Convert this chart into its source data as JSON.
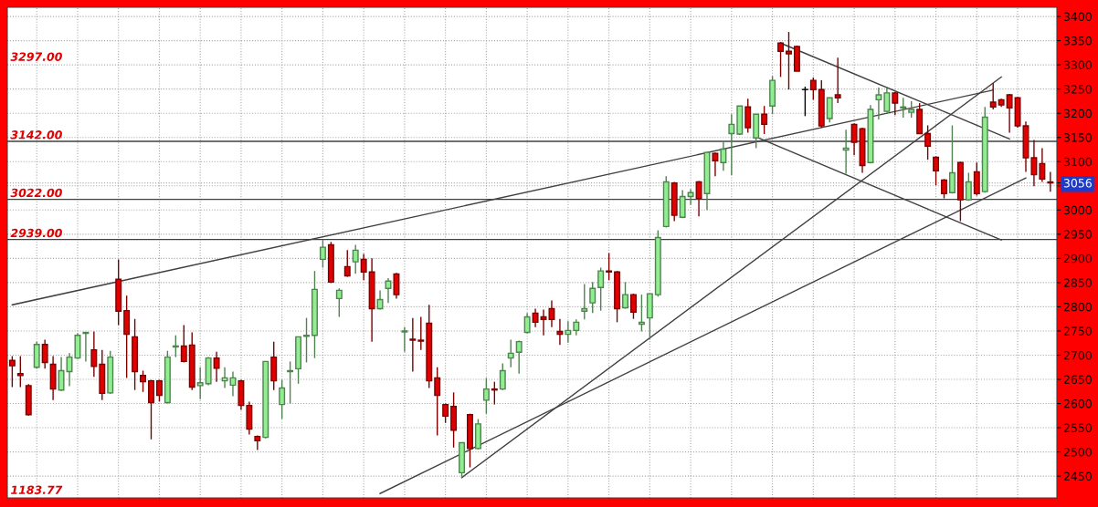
{
  "chart_data": {
    "type": "candlestick",
    "categories": [
      null,
      null,
      null,
      null,
      null,
      null,
      null,
      null,
      null,
      null,
      null,
      null,
      null,
      null,
      null,
      null,
      null,
      null,
      null,
      null,
      null,
      null,
      null,
      null,
      null,
      null,
      null,
      null,
      null,
      null,
      null,
      null,
      null,
      null,
      null,
      null,
      null,
      null,
      null,
      null,
      null,
      null,
      null,
      null,
      null,
      null,
      null,
      null,
      null,
      null,
      null,
      null,
      null,
      null,
      null,
      null,
      null,
      null,
      null,
      null,
      null,
      null,
      null,
      null,
      null,
      null,
      null,
      null,
      null,
      null,
      null,
      null,
      null,
      null,
      null,
      null,
      null,
      null,
      null,
      null,
      null,
      null,
      null,
      null,
      null,
      null,
      null,
      null,
      null,
      null,
      null,
      null,
      null,
      null,
      null,
      null,
      null,
      null,
      null,
      null,
      null,
      null,
      null,
      null,
      null,
      null,
      null,
      null,
      null,
      null,
      null,
      null,
      null,
      null,
      null,
      null,
      null,
      null,
      null,
      null,
      null,
      null,
      null,
      null,
      null,
      null,
      null,
      null
    ],
    "ohlc": [
      [
        2689,
        2698,
        2634,
        2678
      ],
      [
        2662,
        2698,
        2634,
        2658
      ],
      [
        2637,
        2640,
        2575,
        2577
      ],
      [
        2675,
        2728,
        2672,
        2722
      ],
      [
        2722,
        2732,
        2672,
        2685
      ],
      [
        2681,
        2698,
        2607,
        2630
      ],
      [
        2628,
        2696,
        2626,
        2668
      ],
      [
        2666,
        2704,
        2636,
        2696
      ],
      [
        2694,
        2745,
        2692,
        2741
      ],
      [
        2745,
        2747,
        2687,
        2747
      ],
      [
        2711,
        2749,
        2655,
        2677
      ],
      [
        2681,
        2711,
        2607,
        2621
      ],
      [
        2622,
        2709,
        2620,
        2696
      ],
      [
        2857,
        2898,
        2762,
        2791
      ],
      [
        2792,
        2823,
        2653,
        2743
      ],
      [
        2738,
        2775,
        2628,
        2666
      ],
      [
        2658,
        2668,
        2624,
        2645
      ],
      [
        2647,
        2649,
        2526,
        2602
      ],
      [
        2647,
        2649,
        2604,
        2617
      ],
      [
        2602,
        2709,
        2600,
        2696
      ],
      [
        2717,
        2741,
        2696,
        2719
      ],
      [
        2719,
        2762,
        2685,
        2687
      ],
      [
        2721,
        2747,
        2628,
        2634
      ],
      [
        2637,
        2675,
        2609,
        2643
      ],
      [
        2641,
        2696,
        2638,
        2694
      ],
      [
        2694,
        2707,
        2645,
        2673
      ],
      [
        2647,
        2675,
        2632,
        2653
      ],
      [
        2638,
        2666,
        2615,
        2653
      ],
      [
        2647,
        2649,
        2587,
        2596
      ],
      [
        2596,
        2604,
        2536,
        2547
      ],
      [
        2532,
        2534,
        2504,
        2523
      ],
      [
        2530,
        2687,
        2528,
        2687
      ],
      [
        2696,
        2728,
        2628,
        2647
      ],
      [
        2598,
        2649,
        2568,
        2632
      ],
      [
        2666,
        2687,
        2600,
        2668
      ],
      [
        2672,
        2738,
        2641,
        2738
      ],
      [
        2739,
        2777,
        2685,
        2741
      ],
      [
        2741,
        2874,
        2694,
        2836
      ],
      [
        2898,
        2938,
        2881,
        2923
      ],
      [
        2928,
        2934,
        2849,
        2851
      ],
      [
        2817,
        2838,
        2779,
        2834
      ],
      [
        2883,
        2917,
        2862,
        2864
      ],
      [
        2893,
        2928,
        2868,
        2917
      ],
      [
        2898,
        2909,
        2855,
        2872
      ],
      [
        2872,
        2900,
        2728,
        2796
      ],
      [
        2796,
        2834,
        2794,
        2815
      ],
      [
        2838,
        2859,
        2808,
        2853
      ],
      [
        2868,
        2870,
        2817,
        2825
      ],
      [
        2748,
        2758,
        2707,
        2750
      ],
      [
        2733,
        2777,
        2666,
        2731
      ],
      [
        2731,
        2779,
        2711,
        2729
      ],
      [
        2766,
        2804,
        2632,
        2647
      ],
      [
        2653,
        2675,
        2534,
        2617
      ],
      [
        2598,
        2600,
        2560,
        2574
      ],
      [
        2594,
        2623,
        2509,
        2545
      ],
      [
        2457,
        2519,
        2447,
        2519
      ],
      [
        2577,
        2579,
        2468,
        2507
      ],
      [
        2507,
        2568,
        2505,
        2558
      ],
      [
        2607,
        2653,
        2579,
        2630
      ],
      [
        2630,
        2645,
        2598,
        2628
      ],
      [
        2630,
        2683,
        2628,
        2668
      ],
      [
        2694,
        2732,
        2675,
        2704
      ],
      [
        2706,
        2730,
        2662,
        2728
      ],
      [
        2747,
        2787,
        2745,
        2779
      ],
      [
        2787,
        2796,
        2758,
        2768
      ],
      [
        2779,
        2794,
        2741,
        2774
      ],
      [
        2796,
        2813,
        2758,
        2774
      ],
      [
        2749,
        2775,
        2721,
        2743
      ],
      [
        2743,
        2770,
        2726,
        2751
      ],
      [
        2751,
        2774,
        2741,
        2768
      ],
      [
        2791,
        2847,
        2774,
        2796
      ],
      [
        2808,
        2851,
        2787,
        2838
      ],
      [
        2840,
        2881,
        2792,
        2874
      ],
      [
        2874,
        2911,
        2855,
        2872
      ],
      [
        2872,
        2874,
        2768,
        2796
      ],
      [
        2798,
        2851,
        2796,
        2825
      ],
      [
        2825,
        2827,
        2775,
        2789
      ],
      [
        2764,
        2825,
        2749,
        2768
      ],
      [
        2777,
        2827,
        2732,
        2827
      ],
      [
        2825,
        2958,
        2821,
        2943
      ],
      [
        2966,
        3070,
        2964,
        3058
      ],
      [
        3056,
        3058,
        2977,
        2989
      ],
      [
        2985,
        3041,
        2983,
        3028
      ],
      [
        3028,
        3043,
        3011,
        3036
      ],
      [
        3058,
        3060,
        2987,
        3024
      ],
      [
        3034,
        3119,
        3000,
        3119
      ],
      [
        3117,
        3119,
        3070,
        3102
      ],
      [
        3098,
        3140,
        3081,
        3126
      ],
      [
        3158,
        3198,
        3072,
        3177
      ],
      [
        3157,
        3215,
        3155,
        3215
      ],
      [
        3213,
        3230,
        3160,
        3170
      ],
      [
        3149,
        3198,
        3128,
        3198
      ],
      [
        3198,
        3215,
        3157,
        3177
      ],
      [
        3215,
        3277,
        3198,
        3268
      ],
      [
        3345,
        3347,
        3275,
        3328
      ],
      [
        3328,
        3368,
        3249,
        3323
      ],
      [
        3338,
        3340,
        3287,
        3287
      ],
      [
        3249,
        3255,
        3194,
        3249
      ],
      [
        3268,
        3274,
        3228,
        3249
      ],
      [
        3249,
        3268,
        3170,
        3174
      ],
      [
        3189,
        3232,
        3181,
        3232
      ],
      [
        3238,
        3315,
        3221,
        3232
      ],
      [
        3124,
        3166,
        3075,
        3128
      ],
      [
        3177,
        3179,
        3113,
        3140
      ],
      [
        3168,
        3170,
        3077,
        3092
      ],
      [
        3098,
        3217,
        3096,
        3208
      ],
      [
        3228,
        3253,
        3187,
        3238
      ],
      [
        3204,
        3255,
        3202,
        3242
      ],
      [
        3242,
        3244,
        3196,
        3221
      ],
      [
        3211,
        3232,
        3191,
        3213
      ],
      [
        3202,
        3225,
        3191,
        3208
      ],
      [
        3208,
        3221,
        3158,
        3158
      ],
      [
        3158,
        3175,
        3104,
        3132
      ],
      [
        3109,
        3111,
        3051,
        3081
      ],
      [
        3062,
        3064,
        3024,
        3034
      ],
      [
        3036,
        3175,
        3034,
        3077
      ],
      [
        3098,
        3100,
        2977,
        3021
      ],
      [
        3021,
        3077,
        3019,
        3058
      ],
      [
        3079,
        3098,
        3030,
        3034
      ],
      [
        3038,
        3213,
        3036,
        3192
      ],
      [
        3223,
        3262,
        3208,
        3213
      ],
      [
        3228,
        3230,
        3213,
        3217
      ],
      [
        3238,
        3240,
        3160,
        3211
      ],
      [
        3232,
        3234,
        3170,
        3174
      ],
      [
        3174,
        3183,
        3079,
        3108
      ],
      [
        3108,
        3145,
        3049,
        3073
      ],
      [
        3096,
        3128,
        3058,
        3064
      ],
      [
        3058,
        3079,
        3038,
        3056
      ]
    ],
    "colors": [
      "#e00000",
      "#e00000",
      "#e00000",
      "#90ee90",
      "#e00000",
      "#e00000",
      "#90ee90",
      "#90ee90",
      "#90ee90",
      "#90ee90",
      "#e00000",
      "#e00000",
      "#90ee90",
      "#e00000",
      "#e00000",
      "#e00000",
      "#e00000",
      "#e00000",
      "#e00000",
      "#90ee90",
      "#90ee90",
      "#e00000",
      "#e00000",
      "#90ee90",
      "#90ee90",
      "#e00000",
      "#90ee90",
      "#90ee90",
      "#e00000",
      "#e00000",
      "#e00000",
      "#90ee90",
      "#e00000",
      "#90ee90",
      "#90ee90",
      "#90ee90",
      "#90ee90",
      "#90ee90",
      "#90ee90",
      "#e00000",
      "#90ee90",
      "#e00000",
      "#90ee90",
      "#e00000",
      "#e00000",
      "#90ee90",
      "#90ee90",
      "#e00000",
      "#90ee90",
      "#e00000",
      "#e00000",
      "#e00000",
      "#e00000",
      "#e00000",
      "#e00000",
      "#90ee90",
      "#e00000",
      "#90ee90",
      "#90ee90",
      "#e00000",
      "#90ee90",
      "#90ee90",
      "#90ee90",
      "#90ee90",
      "#e00000",
      "#e00000",
      "#e00000",
      "#e00000",
      "#90ee90",
      "#90ee90",
      "#90ee90",
      "#90ee90",
      "#90ee90",
      "#e00000",
      "#e00000",
      "#90ee90",
      "#e00000",
      "#90ee90",
      "#90ee90",
      "#90ee90",
      "#90ee90",
      "#e00000",
      "#90ee90",
      "#90ee90",
      "#e00000",
      "#90ee90",
      "#e00000",
      "#90ee90",
      "#90ee90",
      "#90ee90",
      "#e00000",
      "#90ee90",
      "#e00000",
      "#90ee90",
      "#e00000",
      "#e00000",
      "#e00000",
      "#000000",
      "#e00000",
      "#e00000",
      "#90ee90",
      "#e00000",
      "#90ee90",
      "#e00000",
      "#e00000",
      "#90ee90",
      "#90ee90",
      "#90ee90",
      "#e00000",
      "#90ee90",
      "#90ee90",
      "#e00000",
      "#e00000",
      "#e00000",
      "#e00000",
      "#90ee90",
      "#e00000",
      "#90ee90",
      "#e00000",
      "#90ee90",
      "#e00000",
      "#e00000",
      "#e00000",
      "#e00000",
      "#e00000",
      "#e00000",
      "#e00000",
      "#e00000"
    ],
    "series": [
      {
        "type": "line",
        "color": "#404040",
        "values": [
          2804,
          null,
          null,
          null,
          null,
          null,
          null,
          null,
          null,
          null,
          null,
          null,
          null,
          null,
          null,
          null,
          null,
          null,
          null,
          null,
          null,
          null,
          null,
          null,
          null,
          null,
          null,
          null,
          null,
          null,
          null,
          null,
          null,
          null,
          null,
          null,
          null,
          null,
          null,
          null,
          null,
          null,
          null,
          null,
          null,
          null,
          null,
          null,
          null,
          null,
          null,
          null,
          null,
          null,
          null,
          null,
          null,
          null,
          null,
          null,
          null,
          null,
          null,
          null,
          null,
          null,
          null,
          null,
          null,
          null,
          null,
          null,
          null,
          null,
          null,
          null,
          null,
          null,
          null,
          null,
          null,
          null,
          null,
          null,
          null,
          null,
          null,
          null,
          null,
          null,
          null,
          null,
          null,
          null,
          null,
          null,
          null,
          null,
          null,
          null,
          null,
          null,
          null,
          null,
          null,
          null,
          null,
          null,
          null,
          null,
          null,
          null,
          null,
          null,
          null,
          null,
          null,
          null,
          null,
          null,
          3248,
          null,
          null,
          null,
          null,
          null,
          null,
          null
        ]
      },
      {
        "type": "line",
        "color": "#404040",
        "values": [
          null,
          null,
          null,
          null,
          null,
          null,
          null,
          null,
          null,
          null,
          null,
          null,
          null,
          null,
          null,
          null,
          null,
          null,
          null,
          null,
          null,
          null,
          null,
          null,
          null,
          null,
          null,
          null,
          null,
          null,
          null,
          null,
          null,
          null,
          null,
          null,
          null,
          null,
          null,
          null,
          null,
          null,
          null,
          null,
          null,
          null,
          null,
          null,
          null,
          null,
          null,
          null,
          null,
          null,
          null,
          2447,
          null,
          null,
          null,
          null,
          null,
          null,
          null,
          null,
          null,
          null,
          null,
          null,
          null,
          null,
          null,
          null,
          null,
          null,
          null,
          null,
          null,
          null,
          null,
          null,
          null,
          null,
          null,
          null,
          null,
          null,
          null,
          null,
          null,
          null,
          null,
          null,
          null,
          null,
          null,
          null,
          null,
          null,
          null,
          null,
          null,
          null,
          null,
          null,
          null,
          null,
          null,
          null,
          null,
          null,
          null,
          null,
          null,
          null,
          null,
          null,
          null,
          null,
          null,
          null,
          null,
          3275,
          null,
          null,
          null,
          null,
          null,
          null
        ]
      },
      {
        "type": "line",
        "color": "#404040",
        "values": [
          null,
          null,
          null,
          null,
          null,
          null,
          null,
          null,
          null,
          null,
          null,
          null,
          null,
          null,
          null,
          null,
          null,
          null,
          null,
          null,
          null,
          null,
          null,
          null,
          null,
          null,
          null,
          null,
          null,
          null,
          null,
          null,
          null,
          null,
          null,
          null,
          null,
          null,
          null,
          null,
          null,
          null,
          null,
          null,
          null,
          2414,
          null,
          null,
          null,
          null,
          null,
          null,
          null,
          null,
          null,
          null,
          null,
          null,
          null,
          null,
          null,
          null,
          null,
          null,
          null,
          null,
          null,
          null,
          null,
          null,
          null,
          null,
          null,
          null,
          null,
          null,
          null,
          null,
          null,
          null,
          null,
          null,
          null,
          null,
          null,
          null,
          null,
          null,
          null,
          null,
          null,
          null,
          null,
          null,
          null,
          null,
          null,
          null,
          null,
          null,
          null,
          null,
          null,
          null,
          null,
          null,
          null,
          null,
          null,
          null,
          null,
          null,
          null,
          null,
          null,
          null,
          null,
          null,
          null,
          null,
          null,
          null,
          null,
          null,
          3066,
          null,
          null,
          null
        ]
      },
      {
        "type": "line",
        "color": "#404040",
        "values": [
          null,
          null,
          null,
          null,
          null,
          null,
          null,
          null,
          null,
          null,
          null,
          null,
          null,
          null,
          null,
          null,
          null,
          null,
          null,
          null,
          null,
          null,
          null,
          null,
          null,
          null,
          null,
          null,
          null,
          null,
          null,
          null,
          null,
          null,
          null,
          null,
          null,
          null,
          null,
          null,
          null,
          null,
          null,
          null,
          null,
          null,
          null,
          null,
          null,
          null,
          null,
          null,
          null,
          null,
          null,
          null,
          null,
          null,
          null,
          null,
          null,
          null,
          null,
          null,
          null,
          null,
          null,
          null,
          null,
          null,
          null,
          null,
          null,
          null,
          null,
          null,
          null,
          null,
          null,
          null,
          null,
          null,
          null,
          null,
          null,
          null,
          null,
          null,
          null,
          null,
          null,
          null,
          null,
          null,
          3345,
          null,
          null,
          null,
          null,
          null,
          null,
          null,
          null,
          null,
          null,
          null,
          null,
          null,
          null,
          null,
          null,
          null,
          null,
          null,
          null,
          null,
          null,
          null,
          null,
          null,
          null,
          null,
          3147,
          null,
          null,
          null,
          null,
          null
        ]
      },
      {
        "type": "line",
        "color": "#404040",
        "values": [
          null,
          null,
          null,
          null,
          null,
          null,
          null,
          null,
          null,
          null,
          null,
          null,
          null,
          null,
          null,
          null,
          null,
          null,
          null,
          null,
          null,
          null,
          null,
          null,
          null,
          null,
          null,
          null,
          null,
          null,
          null,
          null,
          null,
          null,
          null,
          null,
          null,
          null,
          null,
          null,
          null,
          null,
          null,
          null,
          null,
          null,
          null,
          null,
          null,
          null,
          null,
          null,
          null,
          null,
          null,
          null,
          null,
          null,
          null,
          null,
          null,
          null,
          null,
          null,
          null,
          null,
          null,
          null,
          null,
          null,
          null,
          null,
          null,
          null,
          null,
          null,
          null,
          null,
          null,
          null,
          null,
          null,
          null,
          null,
          null,
          null,
          null,
          null,
          null,
          null,
          null,
          3151,
          null,
          null,
          null,
          null,
          null,
          null,
          null,
          null,
          null,
          null,
          null,
          null,
          null,
          null,
          null,
          null,
          null,
          null,
          null,
          null,
          null,
          null,
          null,
          null,
          null,
          null,
          null,
          null,
          null,
          2938,
          null,
          null,
          null,
          null,
          null,
          null
        ]
      }
    ],
    "ylim": [
      2405,
      3419
    ],
    "yticks": [
      2450,
      2500,
      2550,
      2600,
      2650,
      2700,
      2750,
      2800,
      2850,
      2900,
      2950,
      3000,
      {
        "value": 3050,
        "label": null
      },
      {
        "value": 3056,
        "label": "3056"
      },
      3100,
      3150,
      3200,
      3250,
      3300,
      3350,
      3400
    ],
    "grid": true,
    "ref_lines": [
      {
        "axis": "y",
        "value": 3142,
        "label": "3142.00",
        "color": "#404040"
      },
      {
        "axis": "y",
        "value": 3022,
        "label": "3022.00",
        "color": "#404040"
      },
      {
        "axis": "y",
        "value": 2939,
        "label": "2939.00",
        "color": "#404040"
      }
    ],
    "annotations": [
      "3297.00",
      "1183.77"
    ]
  }
}
